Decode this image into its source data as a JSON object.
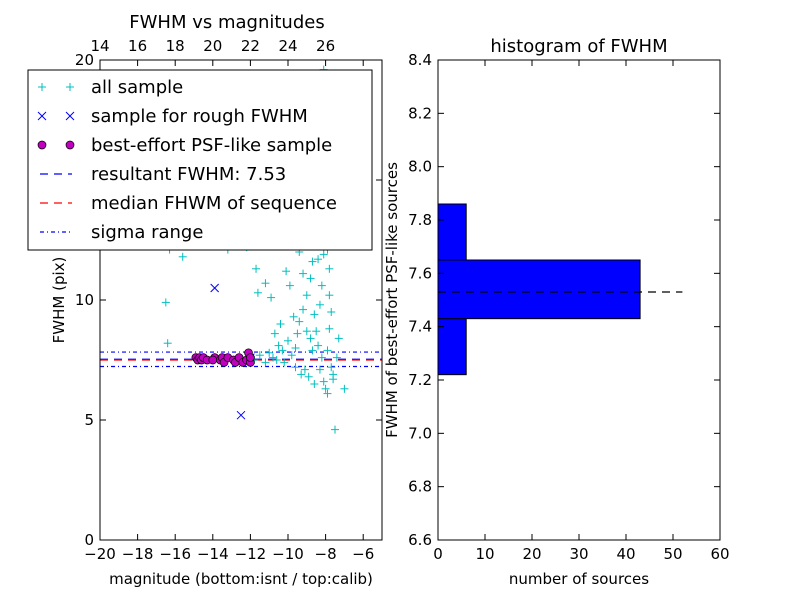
{
  "chart_data": [
    {
      "type": "scatter",
      "title": "FWHM vs magnitudes",
      "xlabel": "magnitude (bottom:isnt / top:calib)",
      "ylabel": "FWHM (pix)",
      "xlim": [
        -20,
        -5
      ],
      "ylim": [
        0,
        20
      ],
      "xticks": [
        -20,
        -18,
        -16,
        -14,
        -12,
        -10,
        -8,
        -6
      ],
      "xtick_labels": [
        "−20",
        "−18",
        "−16",
        "−14",
        "−12",
        "−10",
        "−8",
        "−6"
      ],
      "yticks": [
        0,
        5,
        10,
        15,
        20
      ],
      "ytick_labels": [
        "0",
        "5",
        "10",
        "15",
        "20"
      ],
      "top_axis": {
        "offset": 34,
        "ticks": [
          14,
          16,
          18,
          20,
          22,
          24,
          26
        ],
        "tick_labels": [
          "14",
          "16",
          "18",
          "20",
          "22",
          "24",
          "26"
        ]
      },
      "grid": false,
      "legend_position": "top-left",
      "legend": [
        {
          "label": "all sample",
          "marker": "+",
          "color": "#00bfbf"
        },
        {
          "label": "sample for rough FWHM",
          "marker": "x",
          "color": "#0000ff"
        },
        {
          "label": "best-effort PSF-like sample",
          "marker": "o",
          "color": "#bf00bf"
        },
        {
          "label": "resultant FWHM: 7.53",
          "line": "dashed",
          "color": "#0000ff"
        },
        {
          "label": "median FHWM of sequence",
          "line": "dashed",
          "color": "#ff0000"
        },
        {
          "label": "sigma range",
          "line": "dashdot",
          "color": "#0000ff"
        }
      ],
      "reference_lines": [
        {
          "y": 7.53,
          "color": "#0000ff",
          "style": "dashed"
        },
        {
          "y": 7.5,
          "color": "#ff0000",
          "style": "dashed"
        },
        {
          "y": 7.83,
          "color": "#0000ff",
          "style": "dashdot"
        },
        {
          "y": 7.23,
          "color": "#0000ff",
          "style": "dashdot"
        }
      ],
      "series": [
        {
          "marker": "+",
          "color": "#00bfbf",
          "points": [
            [
              -15.6,
              11.8
            ],
            [
              -16.3,
              12.1
            ],
            [
              -16.5,
              9.9
            ],
            [
              -16.4,
              8.2
            ],
            [
              -13.2,
              12.1
            ],
            [
              -12.2,
              12.2
            ],
            [
              -11.7,
              11.3
            ],
            [
              -11.6,
              10.3
            ],
            [
              -11.2,
              10.7
            ],
            [
              -10.9,
              10.1
            ],
            [
              -12.1,
              7.6
            ],
            [
              -11.8,
              7.5
            ],
            [
              -11.5,
              7.7
            ],
            [
              -11.2,
              7.4
            ],
            [
              -11.0,
              7.8
            ],
            [
              -10.8,
              7.6
            ],
            [
              -10.6,
              7.5
            ],
            [
              -10.5,
              8.1
            ],
            [
              -10.3,
              7.9
            ],
            [
              -10.2,
              7.4
            ],
            [
              -10.0,
              8.3
            ],
            [
              -9.8,
              7.7
            ],
            [
              -9.6,
              7.2
            ],
            [
              -9.5,
              8.6
            ],
            [
              -9.4,
              9.1
            ],
            [
              -9.3,
              6.9
            ],
            [
              -9.2,
              9.6
            ],
            [
              -9.1,
              7.1
            ],
            [
              -9.0,
              10.2
            ],
            [
              -8.9,
              6.8
            ],
            [
              -8.8,
              10.9
            ],
            [
              -8.7,
              11.6
            ],
            [
              -8.6,
              12.4
            ],
            [
              -8.5,
              13.3
            ],
            [
              -8.4,
              14.1
            ],
            [
              -8.3,
              15.0
            ],
            [
              -8.6,
              9.4
            ],
            [
              -8.5,
              8.7
            ],
            [
              -8.4,
              8.1
            ],
            [
              -8.3,
              9.8
            ],
            [
              -8.2,
              10.6
            ],
            [
              -8.1,
              11.9
            ],
            [
              -8.0,
              12.7
            ],
            [
              -8.2,
              7.6
            ],
            [
              -8.1,
              6.6
            ],
            [
              -8.0,
              6.3
            ],
            [
              -7.9,
              7.9
            ],
            [
              -7.8,
              8.8
            ],
            [
              -7.7,
              9.5
            ],
            [
              -7.6,
              6.9
            ],
            [
              -8.4,
              19.3
            ],
            [
              -8.1,
              19.6
            ],
            [
              -8.3,
              17.4
            ],
            [
              -8.5,
              16.2
            ],
            [
              -8.0,
              16.9
            ],
            [
              -8.7,
              14.6
            ],
            [
              -8.9,
              13.2
            ],
            [
              -8.2,
              13.9
            ],
            [
              -8.0,
              14.4
            ],
            [
              -7.9,
              12.1
            ],
            [
              -7.8,
              10.2
            ],
            [
              -7.7,
              7.2
            ],
            [
              -7.5,
              4.6
            ],
            [
              -7.0,
              6.3
            ],
            [
              -9.7,
              9.3
            ],
            [
              -9.9,
              10.6
            ],
            [
              -10.1,
              11.2
            ],
            [
              -9.4,
              12.0
            ],
            [
              -9.2,
              11.1
            ],
            [
              -8.8,
              8.4
            ],
            [
              -8.7,
              7.9
            ],
            [
              -8.6,
              6.5
            ],
            [
              -8.3,
              7.1
            ],
            [
              -7.9,
              6.1
            ],
            [
              -7.6,
              6.7
            ],
            [
              -7.4,
              7.6
            ],
            [
              -7.3,
              8.4
            ],
            [
              -7.8,
              11.3
            ],
            [
              -8.2,
              12.4
            ],
            [
              -8.4,
              11.7
            ],
            [
              -9.0,
              8.7
            ],
            [
              -9.6,
              8.0
            ],
            [
              -10.4,
              9.0
            ],
            [
              -10.7,
              8.6
            ]
          ]
        },
        {
          "marker": "x",
          "color": "#0000ff",
          "points": [
            [
              -13.9,
              10.5
            ],
            [
              -12.5,
              5.2
            ],
            [
              -12.3,
              7.5
            ],
            [
              -12.0,
              7.6
            ]
          ]
        },
        {
          "marker": "o",
          "color": "#bf00bf",
          "points": [
            [
              -14.9,
              7.6
            ],
            [
              -14.8,
              7.5
            ],
            [
              -14.7,
              7.6
            ],
            [
              -14.6,
              7.5
            ],
            [
              -14.5,
              7.6
            ],
            [
              -14.3,
              7.5
            ],
            [
              -13.9,
              7.6
            ],
            [
              -13.6,
              7.5
            ],
            [
              -13.5,
              7.6
            ],
            [
              -13.4,
              7.4
            ],
            [
              -13.2,
              7.6
            ],
            [
              -12.9,
              7.5
            ],
            [
              -12.8,
              7.4
            ],
            [
              -12.6,
              7.6
            ],
            [
              -12.4,
              7.4
            ],
            [
              -12.2,
              7.5
            ],
            [
              -12.1,
              7.8
            ],
            [
              -12.0,
              7.4
            ],
            [
              -12.0,
              7.6
            ],
            [
              -14.0,
              7.5
            ]
          ]
        }
      ]
    },
    {
      "type": "bar",
      "orientation": "horizontal",
      "title": "histogram of FWHM",
      "xlabel": "number of sources",
      "ylabel": "FWHM of best-effort PSF-like sources",
      "xlim": [
        0,
        60
      ],
      "ylim": [
        6.6,
        8.4
      ],
      "xticks": [
        0,
        10,
        20,
        30,
        40,
        50,
        60
      ],
      "xtick_labels": [
        "0",
        "10",
        "20",
        "30",
        "40",
        "50",
        "60"
      ],
      "yticks": [
        6.6,
        6.8,
        7.0,
        7.2,
        7.4,
        7.6,
        7.8,
        8.0,
        8.2,
        8.4
      ],
      "ytick_labels": [
        "6.6",
        "6.8",
        "7.0",
        "7.2",
        "7.4",
        "7.6",
        "7.8",
        "8.0",
        "8.2",
        "8.4"
      ],
      "grid": false,
      "bars": [
        {
          "y_low": 7.22,
          "y_high": 7.43,
          "value": 6
        },
        {
          "y_low": 7.43,
          "y_high": 7.65,
          "value": 43
        },
        {
          "y_low": 7.65,
          "y_high": 7.86,
          "value": 6
        }
      ],
      "bar_color": "#0000ff",
      "reference_line": {
        "y": 7.53,
        "x_range": [
          0,
          52
        ],
        "style": "dashed",
        "color": "#000000"
      }
    }
  ]
}
